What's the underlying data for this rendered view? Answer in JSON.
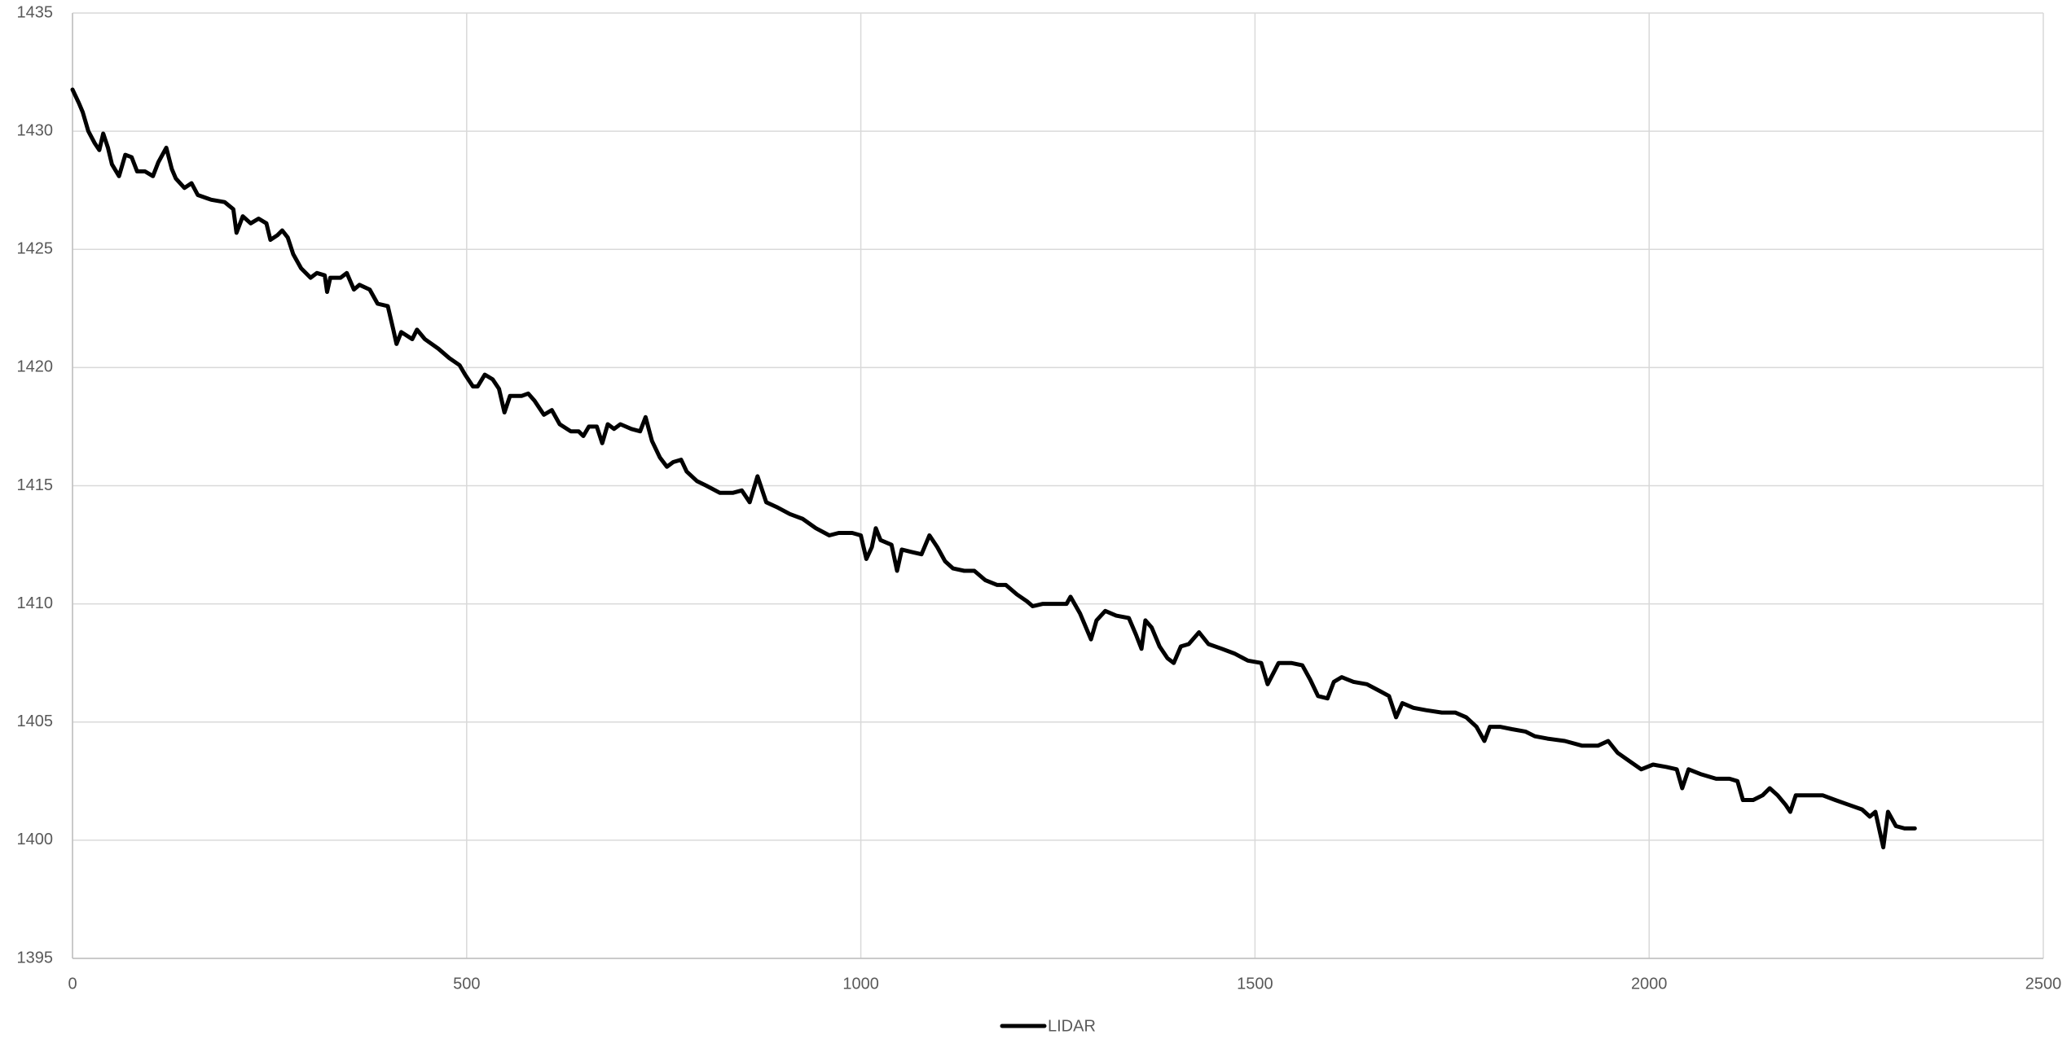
{
  "chart_data": {
    "type": "line",
    "x": [
      0,
      8,
      13,
      20,
      28,
      34,
      39,
      45,
      50,
      59,
      67,
      75,
      82,
      92,
      102,
      109,
      119,
      126,
      131,
      142,
      151,
      159,
      176,
      193,
      204,
      208,
      216,
      226,
      236,
      246,
      251,
      260,
      266,
      273,
      280,
      290,
      302,
      310,
      320,
      323,
      327,
      340,
      348,
      357,
      364,
      377,
      387,
      400,
      407,
      411,
      417,
      431,
      437,
      447,
      464,
      478,
      491,
      498,
      508,
      514,
      523,
      533,
      541,
      548,
      555,
      570,
      578,
      586,
      598,
      608,
      618,
      632,
      642,
      648,
      655,
      665,
      672,
      679,
      687,
      695,
      709,
      720,
      727,
      735,
      745,
      754,
      762,
      772,
      779,
      792,
      804,
      821,
      838,
      849,
      859,
      869,
      880,
      893,
      910,
      926,
      943,
      960,
      972,
      989,
      1000,
      1007,
      1014,
      1019,
      1025,
      1039,
      1046,
      1052,
      1064,
      1077,
      1087,
      1097,
      1107,
      1117,
      1131,
      1144,
      1158,
      1173,
      1184,
      1198,
      1211,
      1218,
      1231,
      1248,
      1261,
      1266,
      1278,
      1292,
      1299,
      1310,
      1324,
      1340,
      1349,
      1356,
      1361,
      1369,
      1379,
      1389,
      1397,
      1406,
      1416,
      1429,
      1441,
      1458,
      1474,
      1491,
      1508,
      1516,
      1530,
      1546,
      1560,
      1570,
      1580,
      1592,
      1600,
      1610,
      1625,
      1642,
      1659,
      1670,
      1679,
      1687,
      1701,
      1717,
      1737,
      1754,
      1768,
      1781,
      1791,
      1798,
      1811,
      1826,
      1843,
      1855,
      1871,
      1893,
      1915,
      1935,
      1948,
      1960,
      1977,
      1990,
      2005,
      2022,
      2035,
      2042,
      2050,
      2065,
      2085,
      2102,
      2112,
      2119,
      2132,
      2144,
      2153,
      2163,
      2173,
      2179,
      2186,
      2203,
      2220,
      2236,
      2253,
      2270,
      2280,
      2287,
      2297,
      2303,
      2313,
      2324,
      2337
    ],
    "series": [
      {
        "name": "LIDAR",
        "color": "#000000",
        "values": [
          1431.76,
          1431.2,
          1430.8,
          1430.0,
          1429.5,
          1429.2,
          1429.9,
          1429.3,
          1428.6,
          1428.1,
          1429.0,
          1428.9,
          1428.3,
          1428.3,
          1428.1,
          1428.7,
          1429.3,
          1428.4,
          1428.0,
          1427.6,
          1427.8,
          1427.3,
          1427.1,
          1427.0,
          1426.7,
          1425.7,
          1426.4,
          1426.1,
          1426.3,
          1426.1,
          1425.4,
          1425.6,
          1425.8,
          1425.5,
          1424.8,
          1424.2,
          1423.8,
          1424.0,
          1423.9,
          1423.2,
          1423.8,
          1423.8,
          1424.0,
          1423.3,
          1423.5,
          1423.3,
          1422.7,
          1422.6,
          1421.6,
          1421.0,
          1421.5,
          1421.2,
          1421.6,
          1421.2,
          1420.8,
          1420.4,
          1420.1,
          1419.7,
          1419.2,
          1419.2,
          1419.7,
          1419.5,
          1419.1,
          1418.1,
          1418.8,
          1418.8,
          1418.9,
          1418.6,
          1418.0,
          1418.2,
          1417.6,
          1417.3,
          1417.3,
          1417.1,
          1417.5,
          1417.5,
          1416.8,
          1417.6,
          1417.4,
          1417.6,
          1417.4,
          1417.3,
          1417.9,
          1416.9,
          1416.2,
          1415.8,
          1416.0,
          1416.1,
          1415.6,
          1415.2,
          1415.0,
          1414.7,
          1414.7,
          1414.8,
          1414.3,
          1415.4,
          1414.3,
          1414.1,
          1413.8,
          1413.6,
          1413.2,
          1412.9,
          1413.0,
          1413.0,
          1412.9,
          1411.9,
          1412.4,
          1413.2,
          1412.7,
          1412.5,
          1411.4,
          1412.3,
          1412.2,
          1412.1,
          1412.9,
          1412.4,
          1411.8,
          1411.5,
          1411.4,
          1411.4,
          1411.0,
          1410.8,
          1410.8,
          1410.4,
          1410.1,
          1409.9,
          1410.0,
          1410.0,
          1410.0,
          1410.3,
          1409.6,
          1408.5,
          1409.3,
          1409.7,
          1409.5,
          1409.4,
          1408.7,
          1408.1,
          1409.3,
          1409.0,
          1408.2,
          1407.7,
          1407.5,
          1408.2,
          1408.3,
          1408.8,
          1408.3,
          1408.1,
          1407.9,
          1407.6,
          1407.5,
          1406.6,
          1407.5,
          1407.5,
          1407.4,
          1406.8,
          1406.1,
          1406.0,
          1406.7,
          1406.9,
          1406.7,
          1406.6,
          1406.3,
          1406.1,
          1405.2,
          1405.8,
          1405.6,
          1405.5,
          1405.4,
          1405.4,
          1405.2,
          1404.8,
          1404.2,
          1404.8,
          1404.8,
          1404.7,
          1404.6,
          1404.4,
          1404.3,
          1404.2,
          1404.0,
          1404.0,
          1404.2,
          1403.7,
          1403.3,
          1403.0,
          1403.2,
          1403.1,
          1403.0,
          1402.2,
          1403.0,
          1402.8,
          1402.6,
          1402.6,
          1402.5,
          1401.7,
          1401.7,
          1401.9,
          1402.2,
          1401.9,
          1401.5,
          1401.2,
          1401.9,
          1401.9,
          1401.9,
          1401.7,
          1401.5,
          1401.3,
          1401.0,
          1401.2,
          1399.7,
          1401.2,
          1400.6,
          1400.5,
          1400.5
        ]
      }
    ],
    "xlim": [
      0,
      2500
    ],
    "xticks": [
      0,
      500,
      1000,
      1500,
      2000,
      2500
    ],
    "ylim": [
      1395,
      1435
    ],
    "yticks": [
      1395,
      1400,
      1405,
      1410,
      1415,
      1420,
      1425,
      1430,
      1435
    ],
    "grid": true,
    "legend": "bottom"
  }
}
